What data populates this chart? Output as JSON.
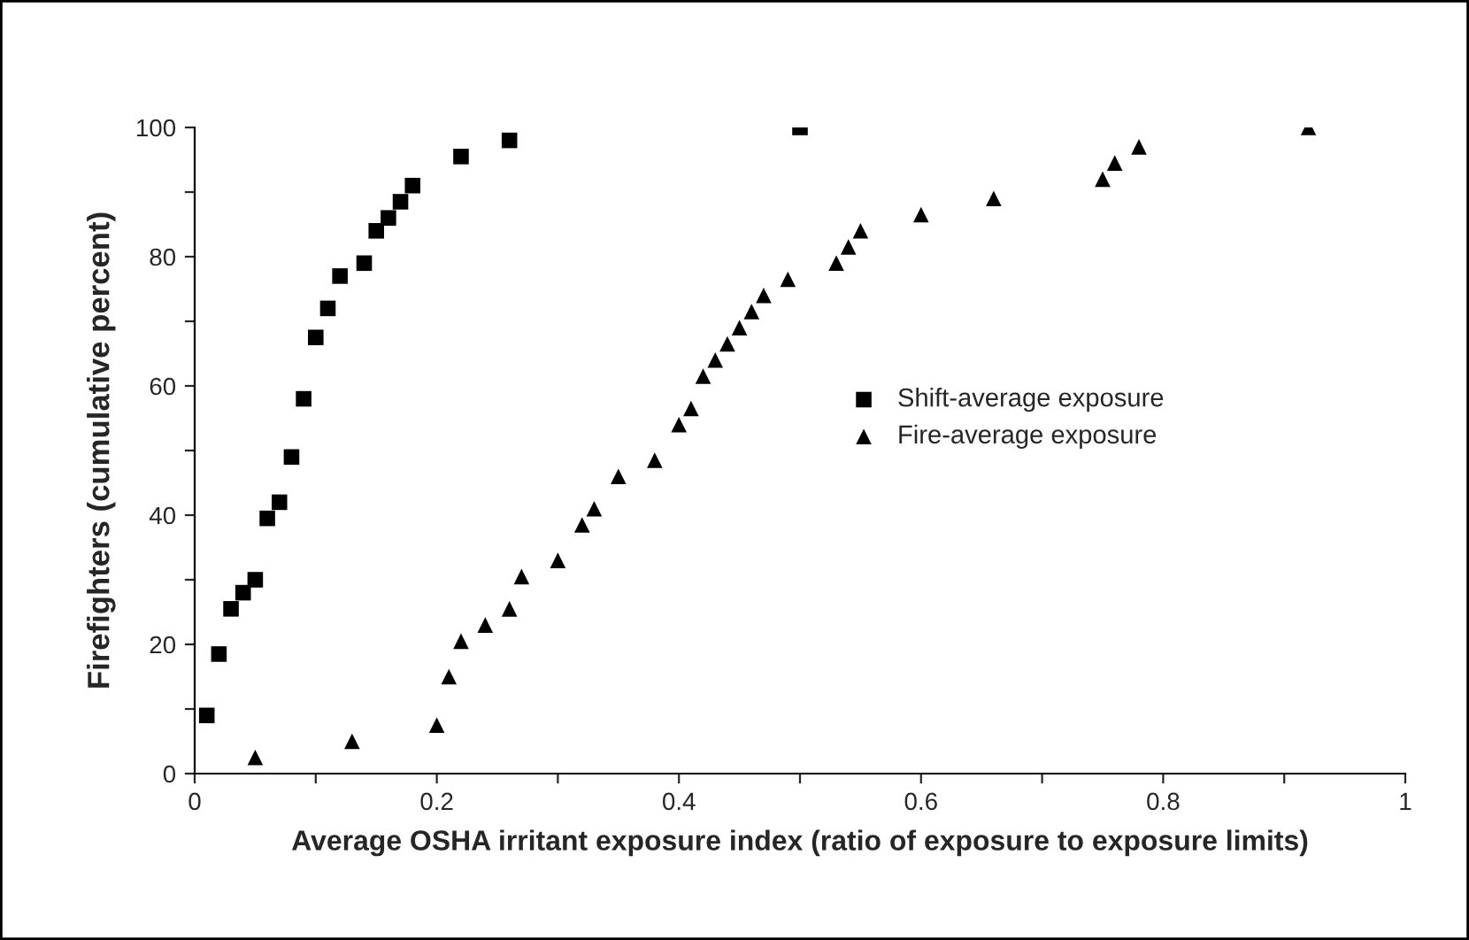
{
  "chart_data": {
    "type": "scatter",
    "xlabel": "Average OSHA irritant exposure index (ratio of exposure to exposure limits)",
    "ylabel": "Firefighters (cumulative percent)",
    "series": [
      {
        "name": "Shift-average exposure",
        "color": "#000000",
        "marker": "square",
        "x": [
          0.01,
          0.02,
          0.03,
          0.04,
          0.05,
          0.06,
          0.07,
          0.08,
          0.09,
          0.1,
          0.11,
          0.12,
          0.14,
          0.15,
          0.16,
          0.17,
          0.18,
          0.22,
          0.26,
          0.5
        ],
        "values": [
          9,
          18.5,
          25.5,
          28,
          30,
          39.5,
          42,
          49,
          58,
          67.5,
          72,
          77,
          79,
          84,
          86,
          88.5,
          91,
          95.5,
          98,
          100
        ]
      },
      {
        "name": "Fire-average exposure",
        "color": "#000000",
        "marker": "triangle",
        "x": [
          0.05,
          0.13,
          0.2,
          0.21,
          0.22,
          0.24,
          0.26,
          0.27,
          0.3,
          0.32,
          0.33,
          0.35,
          0.38,
          0.4,
          0.41,
          0.42,
          0.43,
          0.44,
          0.45,
          0.46,
          0.47,
          0.49,
          0.53,
          0.54,
          0.55,
          0.6,
          0.66,
          0.75,
          0.76,
          0.78,
          0.92
        ],
        "values": [
          2.5,
          5,
          7.5,
          15,
          20.5,
          23,
          25.5,
          30.5,
          33,
          38.5,
          41,
          46,
          48.5,
          54,
          56.5,
          61.5,
          64,
          66.5,
          69,
          71.5,
          74,
          76.5,
          79,
          81.5,
          84,
          86.5,
          89,
          92,
          94.5,
          97,
          100
        ]
      }
    ],
    "xlim": [
      0,
      1
    ],
    "ylim": [
      0,
      100
    ],
    "xticks": [
      0,
      {
        "value": 0.1,
        "label": null
      },
      {
        "value": 0.2,
        "label": "0.2"
      },
      {
        "value": 0.3,
        "label": null
      },
      {
        "value": 0.4,
        "label": "0.4"
      },
      {
        "value": 0.5,
        "label": null
      },
      {
        "value": 0.6,
        "label": "0.6"
      },
      {
        "value": 0.7,
        "label": null
      },
      {
        "value": 0.8,
        "label": "0.8"
      },
      {
        "value": 0.9,
        "label": null
      },
      1
    ],
    "yticks": [
      0,
      {
        "value": 10,
        "label": null
      },
      20,
      {
        "value": 30,
        "label": null
      },
      40,
      {
        "value": 50,
        "label": null
      },
      60,
      {
        "value": 70,
        "label": null
      },
      80,
      {
        "value": 90,
        "label": null
      },
      100
    ],
    "grid": false,
    "legend": "right"
  }
}
